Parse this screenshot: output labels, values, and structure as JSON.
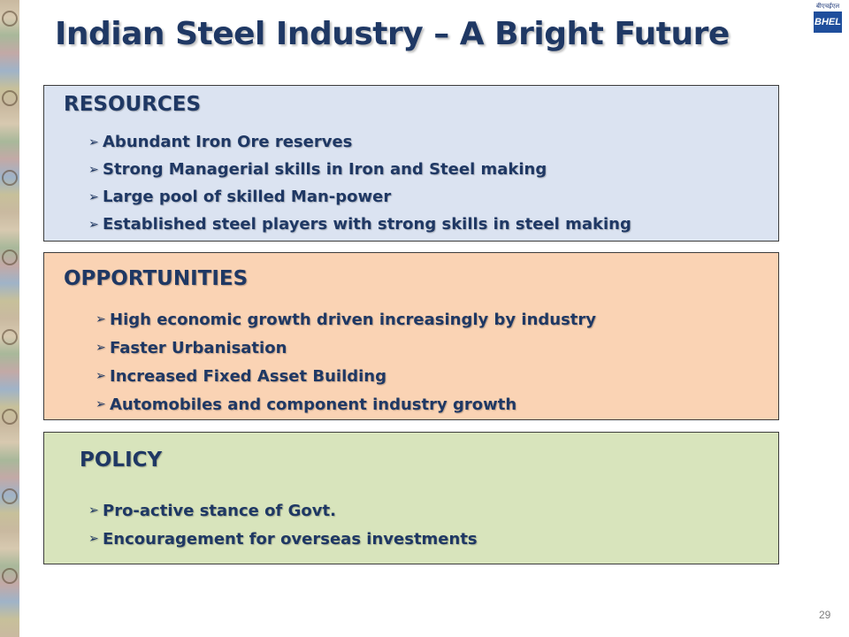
{
  "slide": {
    "title": "Indian Steel Industry – A Bright Future",
    "page_number": "29",
    "logo_text": "BHEL",
    "logo_subtext": "बीएचईएल"
  },
  "resources": {
    "heading": "RESOURCES",
    "items": [
      "Abundant Iron Ore reserves",
      "Strong Managerial skills in Iron and  Steel making",
      "Large pool of skilled Man-power",
      "Established steel players with strong skills in steel making"
    ]
  },
  "opportunities": {
    "heading": "OPPORTUNITIES",
    "items": [
      "High economic growth driven increasingly by industry",
      "Faster Urbanisation",
      "Increased Fixed Asset Building",
      "Automobiles and component industry growth"
    ]
  },
  "policy": {
    "heading": "POLICY",
    "items": [
      "Pro-active stance of Govt.",
      "Encouragement for overseas investments"
    ]
  },
  "colors": {
    "title": "#1f3864",
    "resources_bg": "#dbe3f1",
    "opportunities_bg": "#fad3b4",
    "policy_bg": "#d8e4bc"
  }
}
